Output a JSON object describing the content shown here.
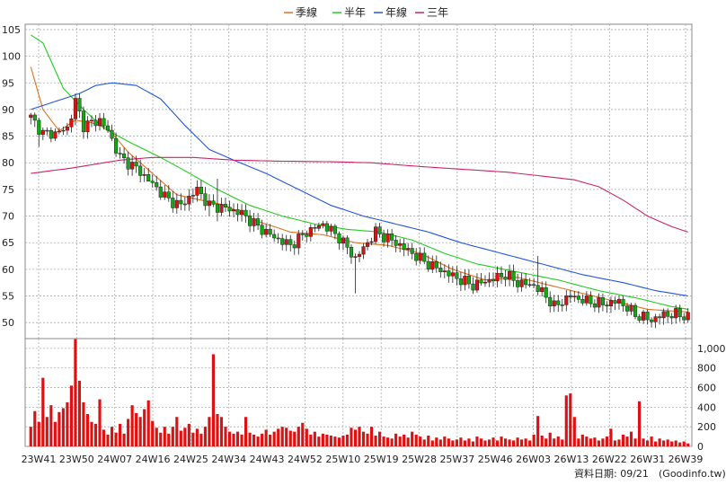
{
  "legend": [
    {
      "label": "季線",
      "color": "#e07020"
    },
    {
      "label": "半年",
      "color": "#22cc22"
    },
    {
      "label": "年線",
      "color": "#2255dd"
    },
    {
      "label": "三年",
      "color": "#cc2266"
    }
  ],
  "footer": {
    "date_label": "資料日期: 09/21",
    "source": "(Goodinfo.tw)"
  },
  "chart_data": [
    {
      "type": "candlestick",
      "name": "price",
      "ylim": [
        47,
        106
      ],
      "y_ticks": [
        50,
        55,
        60,
        65,
        70,
        75,
        80,
        85,
        90,
        95,
        100,
        105
      ],
      "grid": true,
      "x_tick_labels": [
        "23W41",
        "23W50",
        "24W07",
        "24W16",
        "24W25",
        "24W34",
        "24W43",
        "24W52",
        "25W10",
        "25W19",
        "25W28",
        "25W37",
        "25W46",
        "26W03",
        "26W13",
        "26W22",
        "26W31",
        "26W39"
      ],
      "colors": {
        "up": "#dd1111",
        "down": "#11aa11",
        "frame": "#888888"
      },
      "price_knots": [
        [
          0,
          88.5
        ],
        [
          3,
          85.5
        ],
        [
          6,
          85.5
        ],
        [
          9,
          86.5
        ],
        [
          11,
          91.5
        ],
        [
          13,
          87
        ],
        [
          17,
          88
        ],
        [
          19,
          86
        ],
        [
          22,
          81
        ],
        [
          26,
          79
        ],
        [
          30,
          76
        ],
        [
          34,
          73
        ],
        [
          37,
          72
        ],
        [
          41,
          75
        ],
        [
          44,
          72
        ],
        [
          48,
          71.5
        ],
        [
          52,
          70.5
        ],
        [
          56,
          68
        ],
        [
          60,
          66
        ],
        [
          64,
          64.5
        ],
        [
          68,
          67
        ],
        [
          72,
          68.5
        ],
        [
          76,
          66
        ],
        [
          80,
          62
        ],
        [
          85,
          67
        ],
        [
          90,
          65
        ],
        [
          94,
          63
        ],
        [
          98,
          61
        ],
        [
          102,
          59.5
        ],
        [
          106,
          58
        ],
        [
          109,
          57
        ],
        [
          113,
          58
        ],
        [
          117,
          59
        ],
        [
          120,
          57.5
        ],
        [
          124,
          57
        ],
        [
          127,
          55
        ],
        [
          129,
          53
        ],
        [
          133,
          55
        ],
        [
          137,
          54
        ],
        [
          141,
          53.5
        ],
        [
          145,
          54
        ],
        [
          149,
          51.5
        ],
        [
          153,
          50.5
        ],
        [
          156,
          51.5
        ],
        [
          160,
          51.5
        ],
        [
          162,
          51
        ]
      ],
      "wick_spikes": [
        {
          "i": 2,
          "low": 83
        },
        {
          "i": 11,
          "high": 93
        },
        {
          "i": 29,
          "low": 77
        },
        {
          "i": 44,
          "low": 70
        },
        {
          "i": 46,
          "high": 77,
          "low": 69
        },
        {
          "i": 80,
          "low": 55.5
        },
        {
          "i": 125,
          "high": 62.5
        },
        {
          "i": 129,
          "low": 52
        }
      ],
      "moving_averages": {
        "季線": [
          [
            0,
            98
          ],
          [
            3,
            90
          ],
          [
            7,
            86
          ],
          [
            11,
            88
          ],
          [
            15,
            87.5
          ],
          [
            19,
            86.5
          ],
          [
            24,
            82
          ],
          [
            30,
            78
          ],
          [
            36,
            74
          ],
          [
            42,
            73
          ],
          [
            48,
            72
          ],
          [
            56,
            69
          ],
          [
            64,
            67
          ],
          [
            72,
            66.5
          ],
          [
            80,
            65
          ],
          [
            88,
            64.5
          ],
          [
            96,
            63
          ],
          [
            104,
            60
          ],
          [
            112,
            58
          ],
          [
            120,
            58.5
          ],
          [
            128,
            57
          ],
          [
            136,
            55.5
          ],
          [
            144,
            54
          ],
          [
            152,
            52.5
          ],
          [
            162,
            52
          ]
        ],
        "半年": [
          [
            0,
            104
          ],
          [
            3,
            102.5
          ],
          [
            8,
            94
          ],
          [
            13,
            90
          ],
          [
            18,
            86.5
          ],
          [
            24,
            84
          ],
          [
            32,
            81
          ],
          [
            38,
            78.5
          ],
          [
            46,
            75
          ],
          [
            54,
            72
          ],
          [
            62,
            70
          ],
          [
            70,
            68.5
          ],
          [
            78,
            67.5
          ],
          [
            86,
            67
          ],
          [
            94,
            65.5
          ],
          [
            102,
            63
          ],
          [
            110,
            61
          ],
          [
            120,
            59.5
          ],
          [
            130,
            58
          ],
          [
            140,
            56
          ],
          [
            150,
            54.5
          ],
          [
            158,
            53
          ],
          [
            162,
            52.5
          ]
        ],
        "年線": [
          [
            0,
            90
          ],
          [
            6,
            91.5
          ],
          [
            12,
            93
          ],
          [
            16,
            94.5
          ],
          [
            20,
            95
          ],
          [
            26,
            94.5
          ],
          [
            32,
            92
          ],
          [
            38,
            87
          ],
          [
            44,
            82.5
          ],
          [
            50,
            80.5
          ],
          [
            58,
            78
          ],
          [
            66,
            75
          ],
          [
            74,
            72
          ],
          [
            82,
            70
          ],
          [
            90,
            68.5
          ],
          [
            98,
            67
          ],
          [
            106,
            65
          ],
          [
            116,
            63
          ],
          [
            126,
            61
          ],
          [
            136,
            59
          ],
          [
            146,
            57.5
          ],
          [
            154,
            56
          ],
          [
            162,
            55
          ]
        ],
        "三年": [
          [
            0,
            78
          ],
          [
            10,
            79
          ],
          [
            22,
            80.5
          ],
          [
            30,
            81
          ],
          [
            40,
            81
          ],
          [
            50,
            80.5
          ],
          [
            62,
            80.3
          ],
          [
            74,
            80.2
          ],
          [
            84,
            80
          ],
          [
            96,
            79.3
          ],
          [
            106,
            78.8
          ],
          [
            118,
            78.2
          ],
          [
            126,
            77.5
          ],
          [
            134,
            76.8
          ],
          [
            140,
            75.5
          ],
          [
            146,
            73
          ],
          [
            152,
            70
          ],
          [
            158,
            68
          ],
          [
            162,
            67
          ]
        ]
      }
    },
    {
      "type": "bar",
      "name": "volume",
      "ylim": [
        0,
        1100
      ],
      "y_ticks": [
        0,
        200,
        400,
        600,
        800
      ],
      "y_tick_labels": [
        "0",
        "200",
        "400",
        "600",
        "800",
        "1,000"
      ],
      "y_ticks_full": [
        0,
        200,
        400,
        600,
        800,
        1000
      ],
      "color": "#dd1111",
      "volume_points": [
        [
          0,
          200
        ],
        [
          1,
          360
        ],
        [
          2,
          250
        ],
        [
          3,
          700
        ],
        [
          4,
          300
        ],
        [
          5,
          420
        ],
        [
          6,
          250
        ],
        [
          7,
          350
        ],
        [
          8,
          390
        ],
        [
          9,
          450
        ],
        [
          10,
          620
        ],
        [
          11,
          1200
        ],
        [
          12,
          670
        ],
        [
          13,
          450
        ],
        [
          14,
          330
        ],
        [
          15,
          250
        ],
        [
          16,
          230
        ],
        [
          17,
          480
        ],
        [
          18,
          170
        ],
        [
          19,
          120
        ],
        [
          20,
          200
        ],
        [
          21,
          140
        ],
        [
          22,
          230
        ],
        [
          23,
          130
        ],
        [
          24,
          280
        ],
        [
          25,
          420
        ],
        [
          26,
          340
        ],
        [
          27,
          300
        ],
        [
          28,
          380
        ],
        [
          29,
          470
        ],
        [
          30,
          260
        ],
        [
          31,
          190
        ],
        [
          32,
          140
        ],
        [
          33,
          200
        ],
        [
          34,
          130
        ],
        [
          35,
          200
        ],
        [
          36,
          300
        ],
        [
          37,
          160
        ],
        [
          38,
          190
        ],
        [
          39,
          230
        ],
        [
          40,
          140
        ],
        [
          41,
          180
        ],
        [
          42,
          130
        ],
        [
          43,
          200
        ],
        [
          44,
          300
        ],
        [
          45,
          940
        ],
        [
          46,
          330
        ],
        [
          47,
          300
        ],
        [
          48,
          200
        ],
        [
          49,
          150
        ],
        [
          50,
          130
        ],
        [
          51,
          150
        ],
        [
          52,
          120
        ],
        [
          53,
          300
        ],
        [
          54,
          140
        ],
        [
          55,
          120
        ],
        [
          56,
          100
        ],
        [
          57,
          130
        ],
        [
          58,
          170
        ],
        [
          59,
          120
        ],
        [
          60,
          150
        ],
        [
          61,
          180
        ],
        [
          62,
          200
        ],
        [
          63,
          190
        ],
        [
          64,
          160
        ],
        [
          65,
          150
        ],
        [
          66,
          200
        ],
        [
          67,
          240
        ],
        [
          68,
          180
        ],
        [
          69,
          120
        ],
        [
          70,
          150
        ],
        [
          71,
          100
        ],
        [
          72,
          130
        ],
        [
          73,
          120
        ],
        [
          74,
          110
        ],
        [
          75,
          100
        ],
        [
          76,
          90
        ],
        [
          77,
          110
        ],
        [
          78,
          120
        ],
        [
          79,
          190
        ],
        [
          80,
          170
        ],
        [
          81,
          200
        ],
        [
          82,
          150
        ],
        [
          83,
          130
        ],
        [
          84,
          200
        ],
        [
          85,
          110
        ],
        [
          86,
          150
        ],
        [
          87,
          100
        ],
        [
          88,
          90
        ],
        [
          89,
          80
        ],
        [
          90,
          130
        ],
        [
          91,
          100
        ],
        [
          92,
          120
        ],
        [
          93,
          90
        ],
        [
          94,
          150
        ],
        [
          95,
          120
        ],
        [
          96,
          100
        ],
        [
          97,
          70
        ],
        [
          98,
          110
        ],
        [
          99,
          60
        ],
        [
          100,
          90
        ],
        [
          101,
          70
        ],
        [
          102,
          100
        ],
        [
          103,
          80
        ],
        [
          104,
          60
        ],
        [
          105,
          70
        ],
        [
          106,
          90
        ],
        [
          107,
          60
        ],
        [
          108,
          80
        ],
        [
          109,
          50
        ],
        [
          110,
          100
        ],
        [
          111,
          80
        ],
        [
          112,
          60
        ],
        [
          113,
          70
        ],
        [
          114,
          90
        ],
        [
          115,
          60
        ],
        [
          116,
          100
        ],
        [
          117,
          80
        ],
        [
          118,
          70
        ],
        [
          119,
          60
        ],
        [
          120,
          90
        ],
        [
          121,
          70
        ],
        [
          122,
          80
        ],
        [
          123,
          60
        ],
        [
          124,
          120
        ],
        [
          125,
          310
        ],
        [
          126,
          110
        ],
        [
          127,
          80
        ],
        [
          128,
          140
        ],
        [
          129,
          80
        ],
        [
          130,
          100
        ],
        [
          131,
          70
        ],
        [
          132,
          520
        ],
        [
          133,
          540
        ],
        [
          134,
          300
        ],
        [
          135,
          80
        ],
        [
          136,
          120
        ],
        [
          137,
          100
        ],
        [
          138,
          80
        ],
        [
          139,
          90
        ],
        [
          140,
          60
        ],
        [
          141,
          80
        ],
        [
          142,
          100
        ],
        [
          143,
          180
        ],
        [
          144,
          60
        ],
        [
          145,
          70
        ],
        [
          146,
          120
        ],
        [
          147,
          100
        ],
        [
          148,
          150
        ],
        [
          149,
          80
        ],
        [
          150,
          460
        ],
        [
          151,
          80
        ],
        [
          152,
          60
        ],
        [
          153,
          100
        ],
        [
          154,
          50
        ],
        [
          155,
          80
        ],
        [
          156,
          60
        ],
        [
          157,
          70
        ],
        [
          158,
          50
        ],
        [
          159,
          60
        ],
        [
          160,
          40
        ],
        [
          161,
          50
        ],
        [
          162,
          30
        ]
      ]
    }
  ]
}
